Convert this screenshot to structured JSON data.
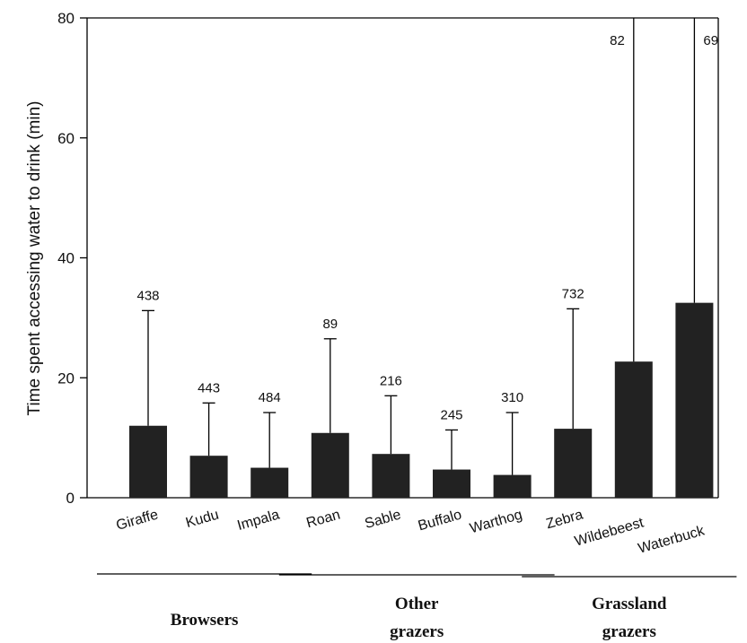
{
  "chart_data": {
    "type": "bar",
    "ylabel": "Time spent accessing water to drink (min)",
    "ylim": [
      0,
      80
    ],
    "yticks": [
      0,
      20,
      40,
      60,
      80
    ],
    "grid": false,
    "categories": [
      "Giraffe",
      "Kudu",
      "Impala",
      "Roan",
      "Sable",
      "Buffalo",
      "Warthog",
      "Zebra",
      "Wildebeest",
      "Waterbuck"
    ],
    "values": [
      12,
      7,
      5,
      10.8,
      7.3,
      4.7,
      3.8,
      11.5,
      22.7,
      32.5
    ],
    "error_upper": [
      31.2,
      15.8,
      14.2,
      26.5,
      17.0,
      11.3,
      14.2,
      31.5,
      80,
      80
    ],
    "sample_sizes": [
      "438",
      "443",
      "484",
      "89",
      "216",
      "245",
      "310",
      "732",
      "82",
      "69"
    ],
    "bar_color": "#222222",
    "groups": [
      {
        "label_line1": "Browsers",
        "label_line2": "",
        "first": 0,
        "last": 2
      },
      {
        "label_line1": "Other",
        "label_line2": "grazers",
        "first": 3,
        "last": 6
      },
      {
        "label_line1": "Grassland",
        "label_line2": "grazers",
        "first": 7,
        "last": 9
      }
    ]
  }
}
